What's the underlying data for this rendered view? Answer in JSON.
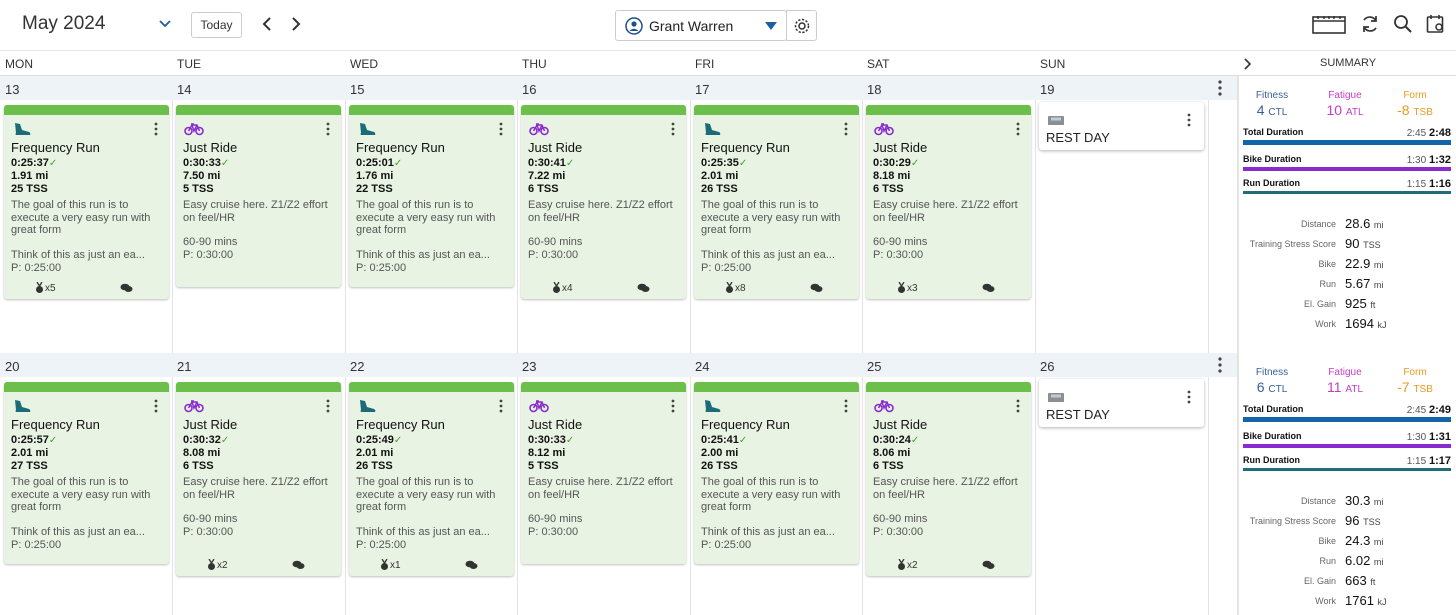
{
  "header": {
    "month": "May 2024",
    "today_label": "Today",
    "athlete_name": "Grant Warren"
  },
  "colors": {
    "workout_bg": "#e8f3e3",
    "workout_bar": "#6cbf4a",
    "fitness": "#3a5f9a",
    "fatigue": "#c43cc4",
    "form": "#e89a1e",
    "total_bar": "#1464a8",
    "bike_bar": "#8a2bd0",
    "run_bar": "#1f6c7a"
  },
  "days": [
    "MON",
    "TUE",
    "WED",
    "THU",
    "FRI",
    "SAT",
    "SUN"
  ],
  "summary_title": "SUMMARY",
  "weeks": [
    {
      "dates": [
        "13",
        "14",
        "15",
        "16",
        "17",
        "18",
        "19"
      ],
      "workouts": [
        {
          "sport": "run",
          "title": "Frequency Run",
          "duration": "0:25:37",
          "distance": "1.91 mi",
          "tss": "25 TSS",
          "desc1": "The goal of this run is to execute a very easy run with great form",
          "desc2": "Think of this as just an ea...",
          "planned": "P: 0:25:00",
          "medals": "x5",
          "comments": true
        },
        {
          "sport": "bike",
          "title": "Just Ride",
          "duration": "0:30:33",
          "distance": "7.50 mi",
          "tss": "5 TSS",
          "desc1": "Easy cruise here. Z1/Z2 effort on feel/HR",
          "desc2": "60-90 mins",
          "planned": "P: 0:30:00",
          "medals": "",
          "comments": false
        },
        {
          "sport": "run",
          "title": "Frequency Run",
          "duration": "0:25:01",
          "distance": "1.76 mi",
          "tss": "22 TSS",
          "desc1": "The goal of this run is to execute a very easy run with great form",
          "desc2": "Think of this as just an ea...",
          "planned": "P: 0:25:00",
          "medals": "",
          "comments": false
        },
        {
          "sport": "bike",
          "title": "Just Ride",
          "duration": "0:30:41",
          "distance": "7.22 mi",
          "tss": "6 TSS",
          "desc1": "Easy cruise here. Z1/Z2 effort on feel/HR",
          "desc2": "60-90 mins",
          "planned": "P: 0:30:00",
          "medals": "x4",
          "comments": true
        },
        {
          "sport": "run",
          "title": "Frequency Run",
          "duration": "0:25:35",
          "distance": "2.01 mi",
          "tss": "26 TSS",
          "desc1": "The goal of this run is to execute a very easy run with great form",
          "desc2": "Think of this as just an ea...",
          "planned": "P: 0:25:00",
          "medals": "x8",
          "comments": true
        },
        {
          "sport": "bike",
          "title": "Just Ride",
          "duration": "0:30:29",
          "distance": "8.18 mi",
          "tss": "6 TSS",
          "desc1": "Easy cruise here. Z1/Z2 effort on feel/HR",
          "desc2": "60-90 mins",
          "planned": "P: 0:30:00",
          "medals": "x3",
          "comments": true
        }
      ],
      "rest_label": "REST DAY",
      "summary": {
        "fitness_label": "Fitness",
        "fitness_val": "4",
        "fitness_unit": "CTL",
        "fatigue_label": "Fatigue",
        "fatigue_val": "10",
        "fatigue_unit": "ATL",
        "form_label": "Form",
        "form_val": "-8",
        "form_unit": "TSB",
        "total_label": "Total Duration",
        "total_planned": "2:45",
        "total_actual": "2:48",
        "bike_label": "Bike Duration",
        "bike_planned": "1:30",
        "bike_actual": "1:32",
        "run_label": "Run Duration",
        "run_planned": "1:15",
        "run_actual": "1:16",
        "stats": [
          {
            "label": "Distance",
            "value": "28.6",
            "unit": "mi"
          },
          {
            "label": "Training Stress Score",
            "value": "90",
            "unit": "TSS"
          },
          {
            "label": "Bike",
            "value": "22.9",
            "unit": "mi"
          },
          {
            "label": "Run",
            "value": "5.67",
            "unit": "mi"
          },
          {
            "label": "El. Gain",
            "value": "925",
            "unit": "ft"
          },
          {
            "label": "Work",
            "value": "1694",
            "unit": "kJ"
          }
        ]
      }
    },
    {
      "dates": [
        "20",
        "21",
        "22",
        "23",
        "24",
        "25",
        "26"
      ],
      "workouts": [
        {
          "sport": "run",
          "title": "Frequency Run",
          "duration": "0:25:57",
          "distance": "2.01 mi",
          "tss": "27 TSS",
          "desc1": "The goal of this run is to execute a very easy run with great form",
          "desc2": "Think of this as just an ea...",
          "planned": "P: 0:25:00",
          "medals": "",
          "comments": false
        },
        {
          "sport": "bike",
          "title": "Just Ride",
          "duration": "0:30:32",
          "distance": "8.08 mi",
          "tss": "6 TSS",
          "desc1": "Easy cruise here. Z1/Z2 effort on feel/HR",
          "desc2": "60-90 mins",
          "planned": "P: 0:30:00",
          "medals": "x2",
          "comments": true
        },
        {
          "sport": "run",
          "title": "Frequency Run",
          "duration": "0:25:49",
          "distance": "2.01 mi",
          "tss": "26 TSS",
          "desc1": "The goal of this run is to execute a very easy run with great form",
          "desc2": "Think of this as just an ea...",
          "planned": "P: 0:25:00",
          "medals": "x1",
          "comments": true
        },
        {
          "sport": "bike",
          "title": "Just Ride",
          "duration": "0:30:33",
          "distance": "8.12 mi",
          "tss": "5 TSS",
          "desc1": "Easy cruise here. Z1/Z2 effort on feel/HR",
          "desc2": "60-90 mins",
          "planned": "P: 0:30:00",
          "medals": "",
          "comments": false
        },
        {
          "sport": "run",
          "title": "Frequency Run",
          "duration": "0:25:41",
          "distance": "2.00 mi",
          "tss": "26 TSS",
          "desc1": "The goal of this run is to execute a very easy run with great form",
          "desc2": "Think of this as just an ea...",
          "planned": "P: 0:25:00",
          "medals": "",
          "comments": false
        },
        {
          "sport": "bike",
          "title": "Just Ride",
          "duration": "0:30:24",
          "distance": "8.06 mi",
          "tss": "6 TSS",
          "desc1": "Easy cruise here. Z1/Z2 effort on feel/HR",
          "desc2": "60-90 mins",
          "planned": "P: 0:30:00",
          "medals": "x2",
          "comments": true
        }
      ],
      "rest_label": "REST DAY",
      "summary": {
        "fitness_label": "Fitness",
        "fitness_val": "6",
        "fitness_unit": "CTL",
        "fatigue_label": "Fatigue",
        "fatigue_val": "11",
        "fatigue_unit": "ATL",
        "form_label": "Form",
        "form_val": "-7",
        "form_unit": "TSB",
        "total_label": "Total Duration",
        "total_planned": "2:45",
        "total_actual": "2:49",
        "bike_label": "Bike Duration",
        "bike_planned": "1:30",
        "bike_actual": "1:31",
        "run_label": "Run Duration",
        "run_planned": "1:15",
        "run_actual": "1:17",
        "stats": [
          {
            "label": "Distance",
            "value": "30.3",
            "unit": "mi"
          },
          {
            "label": "Training Stress Score",
            "value": "96",
            "unit": "TSS"
          },
          {
            "label": "Bike",
            "value": "24.3",
            "unit": "mi"
          },
          {
            "label": "Run",
            "value": "6.02",
            "unit": "mi"
          },
          {
            "label": "El. Gain",
            "value": "663",
            "unit": "ft"
          },
          {
            "label": "Work",
            "value": "1761",
            "unit": "kJ"
          }
        ]
      }
    }
  ]
}
